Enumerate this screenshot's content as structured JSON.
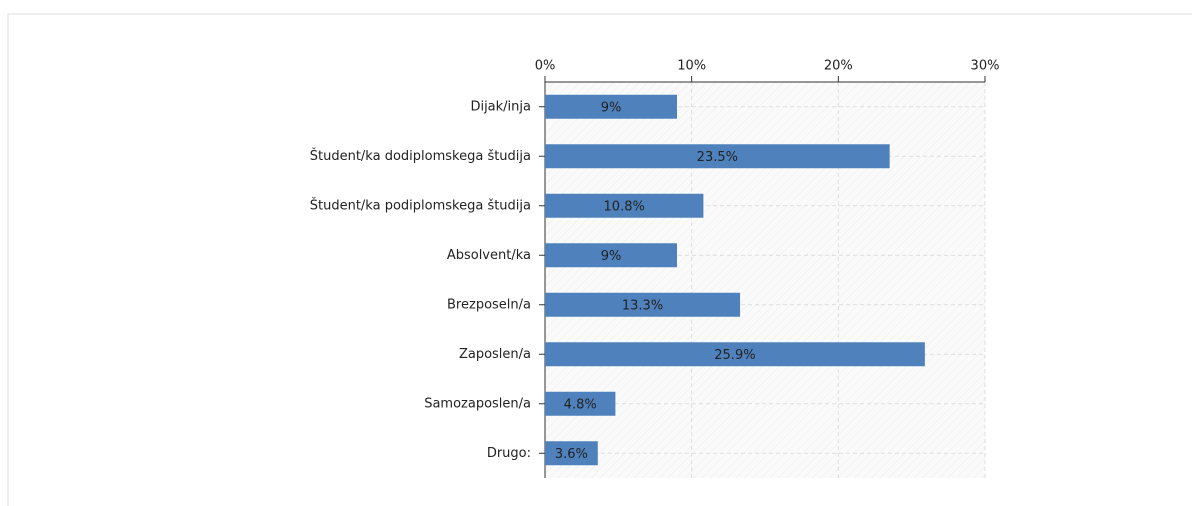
{
  "chart_data": {
    "type": "bar",
    "orientation": "horizontal",
    "categories": [
      "Dijak/inja",
      "Študent/ka dodiplomskega študija",
      "Študent/ka podiplomskega študija",
      "Absolvent/ka",
      "Brezposeln/a",
      "Zaposlen/a",
      "Samozaposlen/a",
      "Drugo:"
    ],
    "values": [
      9,
      23.5,
      10.8,
      9,
      13.3,
      25.9,
      4.8,
      3.6
    ],
    "value_labels": [
      "9%",
      "23.5%",
      "10.8%",
      "9%",
      "13.3%",
      "25.9%",
      "4.8%",
      "3.6%"
    ],
    "color": "#4f81bd",
    "xlim": [
      0,
      30
    ],
    "xticks": [
      {
        "value": 0,
        "label": "0%"
      },
      {
        "value": 10,
        "label": "10%"
      },
      {
        "value": 20,
        "label": "20%"
      },
      {
        "value": 30,
        "label": "30%"
      }
    ],
    "grid": true
  }
}
